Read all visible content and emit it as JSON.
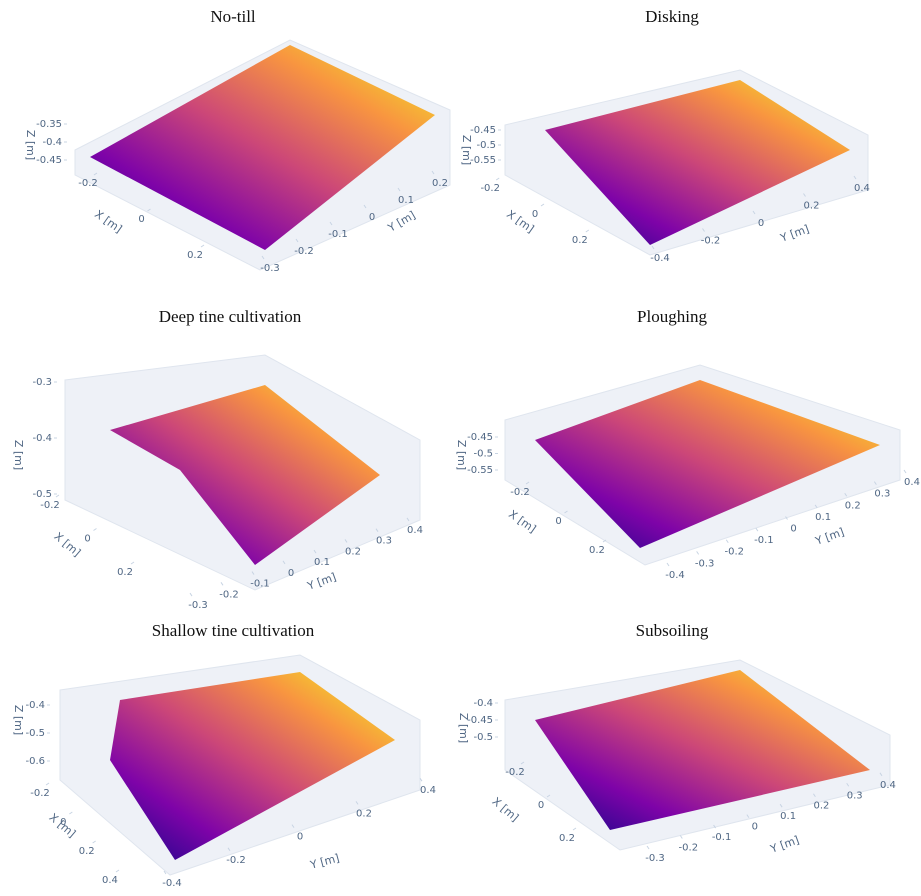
{
  "chart_data": [
    {
      "type": "surface3d",
      "title": "No-till",
      "xlabel": "X [m]",
      "ylabel": "Y [m]",
      "zlabel": "Z [m]",
      "xlim": [
        -0.25,
        0.25
      ],
      "xticks": [
        -0.2,
        0,
        0.2
      ],
      "ylim": [
        -0.35,
        0.25
      ],
      "yticks": [
        -0.3,
        -0.2,
        -0.1,
        0,
        0.1,
        0.2
      ],
      "zlim": [
        -0.47,
        -0.33
      ],
      "zticks": [
        -0.45,
        -0.4,
        -0.35
      ],
      "colorscale": [
        "#0d0887",
        "#7e03a8",
        "#cc4778",
        "#f89540",
        "#f0f921"
      ]
    },
    {
      "type": "surface3d",
      "title": "Disking",
      "xlabel": "X [m]",
      "ylabel": "Y [m]",
      "zlabel": "Z [m]",
      "xlim": [
        -0.25,
        0.25
      ],
      "xticks": [
        -0.2,
        0,
        0.2
      ],
      "ylim": [
        -0.45,
        0.45
      ],
      "yticks": [
        -0.4,
        -0.2,
        0,
        0.2,
        0.4
      ],
      "zlim": [
        -0.57,
        -0.43
      ],
      "zticks": [
        -0.55,
        -0.5,
        -0.45
      ],
      "colorscale": [
        "#0d0887",
        "#7e03a8",
        "#cc4778",
        "#f89540",
        "#f0f921"
      ]
    },
    {
      "type": "surface3d",
      "title": "Deep tine cultivation",
      "xlabel": "X [m]",
      "ylabel": "Y [m]",
      "zlabel": "Z [m]",
      "xlim": [
        -0.25,
        0.25
      ],
      "xticks": [
        -0.2,
        0,
        0.2
      ],
      "ylim": [
        -0.35,
        0.45
      ],
      "yticks": [
        -0.3,
        -0.2,
        -0.1,
        0,
        0.1,
        0.2,
        0.3,
        0.4
      ],
      "zlim": [
        -0.53,
        -0.27
      ],
      "zticks": [
        -0.5,
        -0.4,
        -0.3
      ],
      "colorscale": [
        "#0d0887",
        "#7e03a8",
        "#cc4778",
        "#f89540",
        "#f0f921"
      ]
    },
    {
      "type": "surface3d",
      "title": "Ploughing",
      "xlabel": "X [m]",
      "ylabel": "Y [m]",
      "zlabel": "Z [m]",
      "xlim": [
        -0.25,
        0.25
      ],
      "xticks": [
        -0.2,
        0,
        0.2
      ],
      "ylim": [
        -0.45,
        0.45
      ],
      "yticks": [
        -0.4,
        -0.3,
        -0.2,
        -0.1,
        0,
        0.1,
        0.2,
        0.3,
        0.4
      ],
      "zlim": [
        -0.57,
        -0.43
      ],
      "zticks": [
        -0.55,
        -0.5,
        -0.45
      ],
      "colorscale": [
        "#0d0887",
        "#7e03a8",
        "#cc4778",
        "#f89540",
        "#f0f921"
      ]
    },
    {
      "type": "surface3d",
      "title": "Shallow tine cultivation",
      "xlabel": "X [m]",
      "ylabel": "Y [m]",
      "zlabel": "Z [m]",
      "xlim": [
        -0.25,
        0.45
      ],
      "xticks": [
        -0.2,
        0,
        0.2,
        0.4
      ],
      "ylim": [
        -0.45,
        0.45
      ],
      "yticks": [
        -0.4,
        -0.2,
        0,
        0.2,
        0.4
      ],
      "zlim": [
        -0.63,
        -0.37
      ],
      "zticks": [
        -0.6,
        -0.5,
        -0.4
      ],
      "colorscale": [
        "#0d0887",
        "#7e03a8",
        "#cc4778",
        "#f89540",
        "#f0f921"
      ]
    },
    {
      "type": "surface3d",
      "title": "Subsoiling",
      "xlabel": "X [m]",
      "ylabel": "Y [m]",
      "zlabel": "Z [m]",
      "xlim": [
        -0.25,
        0.25
      ],
      "xticks": [
        -0.2,
        0,
        0.2
      ],
      "ylim": [
        -0.35,
        0.45
      ],
      "yticks": [
        -0.3,
        -0.2,
        -0.1,
        0,
        0.1,
        0.2,
        0.3,
        0.4
      ],
      "zlim": [
        -0.52,
        -0.38
      ],
      "zticks": [
        -0.5,
        -0.45,
        -0.4
      ],
      "colorscale": [
        "#0d0887",
        "#7e03a8",
        "#cc4778",
        "#f89540",
        "#f0f921"
      ]
    }
  ]
}
